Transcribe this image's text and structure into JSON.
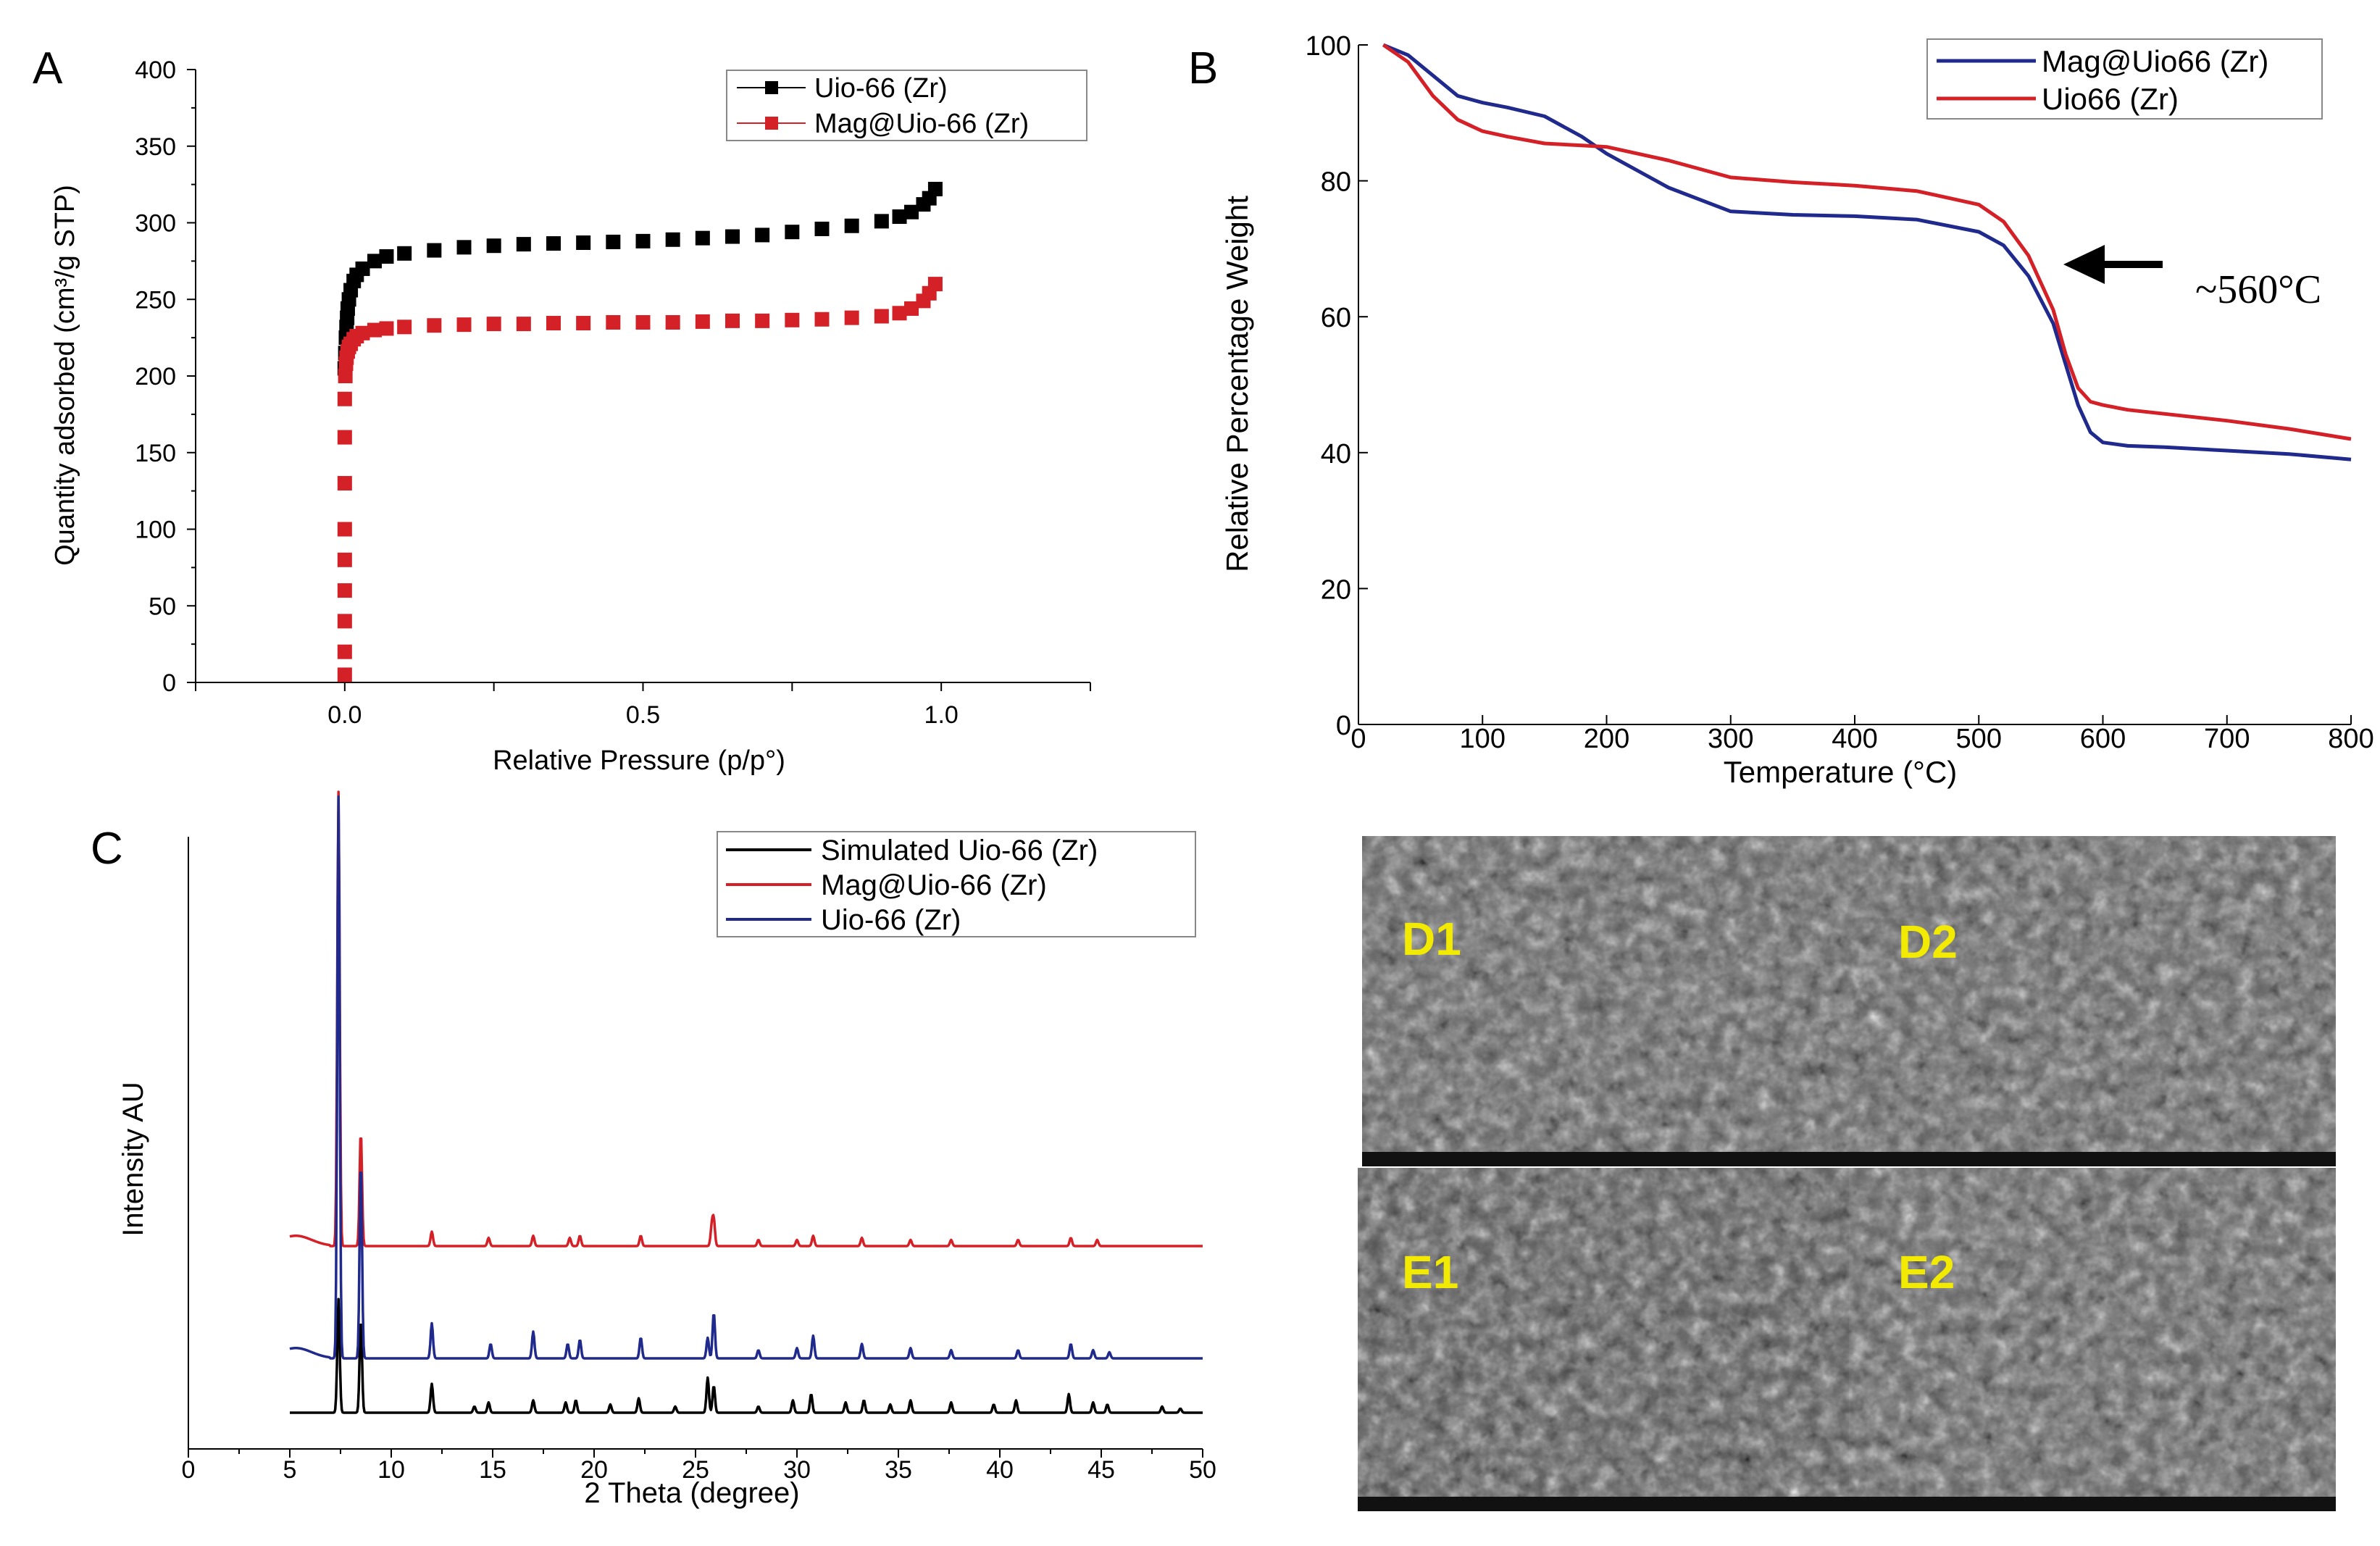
{
  "colors": {
    "black": "#000000",
    "red": "#d42027",
    "blue": "#1f2a8c",
    "sem_label": "#f2ea00"
  },
  "chart_data": [
    {
      "panel": "A",
      "type": "scatter",
      "xlabel": "Relative Pressure (p/p°)",
      "ylabel": "Quantity adsorbed (cm³/g STP)",
      "xlim": [
        -0.25,
        1.25
      ],
      "ylim": [
        0,
        400
      ],
      "xticks": [
        0.0,
        0.5,
        1.0
      ],
      "xtick_labels": [
        "0.0",
        "0.5",
        "1.0"
      ],
      "yticks": [
        0,
        50,
        100,
        150,
        200,
        250,
        300,
        350,
        400
      ],
      "ytick_labels": [
        "0",
        "50",
        "100",
        "150",
        "200",
        "250",
        "300",
        "350",
        "400"
      ],
      "legend_position": "top-right",
      "series": [
        {
          "name": "Uio-66 (Zr)",
          "color": "#000000",
          "marker": "square",
          "x": [
            0.0,
            0.001,
            0.002,
            0.003,
            0.004,
            0.005,
            0.007,
            0.01,
            0.015,
            0.02,
            0.03,
            0.05,
            0.07,
            0.1,
            0.15,
            0.2,
            0.25,
            0.3,
            0.35,
            0.4,
            0.45,
            0.5,
            0.55,
            0.6,
            0.65,
            0.7,
            0.75,
            0.8,
            0.85,
            0.9,
            0.93,
            0.95,
            0.97,
            0.98,
            0.99
          ],
          "y": [
            205,
            215,
            225,
            232,
            238,
            244,
            250,
            256,
            262,
            266,
            270,
            275,
            278,
            280,
            282,
            284,
            285,
            286,
            286.5,
            287,
            287.5,
            288,
            289,
            290,
            291,
            292,
            294,
            296,
            298,
            301,
            304,
            307,
            312,
            316,
            322
          ]
        },
        {
          "name": "Mag@Uio-66 (Zr)",
          "color": "#d42027",
          "marker": "square",
          "x": [
            0.0,
            0.0,
            0.0,
            0.0,
            0.0,
            0.0,
            0.0,
            0.0,
            0.0,
            0.001,
            0.002,
            0.003,
            0.005,
            0.007,
            0.01,
            0.015,
            0.02,
            0.03,
            0.05,
            0.07,
            0.1,
            0.15,
            0.2,
            0.25,
            0.3,
            0.35,
            0.4,
            0.45,
            0.5,
            0.55,
            0.6,
            0.65,
            0.7,
            0.75,
            0.8,
            0.85,
            0.9,
            0.93,
            0.95,
            0.97,
            0.98,
            0.99
          ],
          "y": [
            5,
            20,
            40,
            60,
            80,
            100,
            130,
            160,
            185,
            200,
            208,
            212,
            216,
            219,
            221,
            224,
            226,
            228,
            230,
            231,
            232,
            233,
            233.5,
            234,
            234,
            234.5,
            234.5,
            235,
            235,
            235,
            235.5,
            236,
            236,
            236.5,
            237,
            238,
            239,
            241,
            244,
            249,
            254,
            260
          ]
        }
      ]
    },
    {
      "panel": "B",
      "type": "line",
      "xlabel": "Temperature (°C)",
      "ylabel": "Relative Percentage Weight",
      "xlim": [
        0,
        800
      ],
      "ylim": [
        0,
        100
      ],
      "xticks": [
        0,
        100,
        200,
        300,
        400,
        500,
        600,
        700,
        800
      ],
      "xtick_labels": [
        "0",
        "100",
        "200",
        "300",
        "400",
        "500",
        "600",
        "700",
        "800"
      ],
      "yticks": [
        0,
        20,
        40,
        60,
        80,
        100
      ],
      "ytick_labels": [
        "0",
        "20",
        "40",
        "60",
        "80",
        "100"
      ],
      "legend_position": "top-right",
      "annotation": "~560°C",
      "annotation_x": 560,
      "annotation_y": 68,
      "series": [
        {
          "name": "Mag@Uio66 (Zr)",
          "color": "#1f2a8c",
          "x": [
            20,
            40,
            60,
            80,
            100,
            120,
            150,
            180,
            200,
            250,
            300,
            350,
            400,
            450,
            500,
            520,
            540,
            560,
            570,
            580,
            590,
            600,
            620,
            650,
            700,
            750,
            800
          ],
          "y": [
            100,
            98.5,
            95.5,
            92.5,
            91.5,
            90.8,
            89.5,
            86.5,
            84,
            79,
            75.5,
            75,
            74.8,
            74.3,
            72.5,
            70.5,
            66,
            59,
            53,
            47,
            43,
            41.5,
            41,
            40.8,
            40.3,
            39.8,
            39
          ]
        },
        {
          "name": "Uio66 (Zr)",
          "color": "#d42027",
          "x": [
            20,
            40,
            60,
            80,
            100,
            120,
            150,
            180,
            200,
            250,
            300,
            350,
            400,
            450,
            500,
            520,
            540,
            560,
            570,
            580,
            590,
            600,
            620,
            650,
            700,
            750,
            800
          ],
          "y": [
            100,
            97.5,
            92.5,
            89,
            87.3,
            86.5,
            85.5,
            85.2,
            85,
            83,
            80.5,
            79.8,
            79.3,
            78.5,
            76.5,
            74,
            69,
            61,
            54.5,
            49.5,
            47.5,
            47,
            46.3,
            45.7,
            44.7,
            43.5,
            42
          ]
        }
      ]
    },
    {
      "panel": "C",
      "type": "line",
      "xlabel": "2 Theta (degree)",
      "ylabel": "Intensity AU",
      "xlim": [
        0,
        50
      ],
      "xticks": [
        0,
        5,
        10,
        15,
        20,
        25,
        30,
        35,
        40,
        45,
        50
      ],
      "xtick_labels": [
        "0",
        "5",
        "10",
        "15",
        "20",
        "25",
        "30",
        "35",
        "40",
        "45",
        "50"
      ],
      "legend_position": "top-right",
      "series": [
        {
          "name": "Simulated Uio-66 (Zr)",
          "color": "#000000",
          "baseline": 0,
          "peaks": [
            [
              7.4,
              55
            ],
            [
              8.5,
              45
            ],
            [
              12.0,
              14
            ],
            [
              14.1,
              3
            ],
            [
              14.8,
              5
            ],
            [
              17.0,
              6
            ],
            [
              18.6,
              5
            ],
            [
              19.1,
              6
            ],
            [
              20.8,
              4
            ],
            [
              22.2,
              7
            ],
            [
              24.0,
              3
            ],
            [
              25.6,
              17
            ],
            [
              25.9,
              13
            ],
            [
              28.1,
              3
            ],
            [
              29.8,
              6
            ],
            [
              30.7,
              9
            ],
            [
              32.4,
              5
            ],
            [
              33.3,
              6
            ],
            [
              34.6,
              4
            ],
            [
              35.6,
              6
            ],
            [
              37.6,
              5
            ],
            [
              39.7,
              4
            ],
            [
              40.8,
              6
            ],
            [
              43.4,
              9
            ],
            [
              44.6,
              5
            ],
            [
              45.3,
              4
            ],
            [
              48.0,
              3
            ],
            [
              48.9,
              2
            ]
          ]
        },
        {
          "name": "Mag@Uio-66 (Zr)",
          "color": "#d42027",
          "baseline": 0,
          "peaks": [
            [
              7.4,
              220
            ],
            [
              8.5,
              55
            ],
            [
              12.0,
              7
            ],
            [
              14.8,
              4
            ],
            [
              17.0,
              5
            ],
            [
              18.8,
              4
            ],
            [
              19.3,
              5
            ],
            [
              22.3,
              5
            ],
            [
              25.8,
              9
            ],
            [
              25.9,
              12
            ],
            [
              28.1,
              3
            ],
            [
              30.0,
              3
            ],
            [
              30.8,
              5
            ],
            [
              33.2,
              4
            ],
            [
              35.6,
              3
            ],
            [
              37.6,
              3
            ],
            [
              40.9,
              3
            ],
            [
              43.5,
              4
            ],
            [
              44.8,
              3
            ]
          ]
        },
        {
          "name": "Uio-66 (Zr)",
          "color": "#1f2a8c",
          "baseline": 0,
          "peaks": [
            [
              7.4,
              272
            ],
            [
              8.5,
              95
            ],
            [
              12.0,
              17
            ],
            [
              14.9,
              7
            ],
            [
              17.0,
              13
            ],
            [
              18.7,
              7
            ],
            [
              19.3,
              9
            ],
            [
              22.3,
              10
            ],
            [
              25.6,
              10
            ],
            [
              25.9,
              22
            ],
            [
              28.1,
              4
            ],
            [
              30.0,
              5
            ],
            [
              30.8,
              11
            ],
            [
              33.2,
              7
            ],
            [
              35.6,
              5
            ],
            [
              37.6,
              4
            ],
            [
              40.9,
              4
            ],
            [
              43.5,
              7
            ],
            [
              44.6,
              4
            ],
            [
              45.4,
              3
            ]
          ]
        }
      ]
    }
  ],
  "panel_labels": {
    "a": "A",
    "b": "B",
    "c": "C"
  },
  "sem": {
    "d1": "D1",
    "d2": "D2",
    "e1": "E1",
    "e2": "E2"
  }
}
